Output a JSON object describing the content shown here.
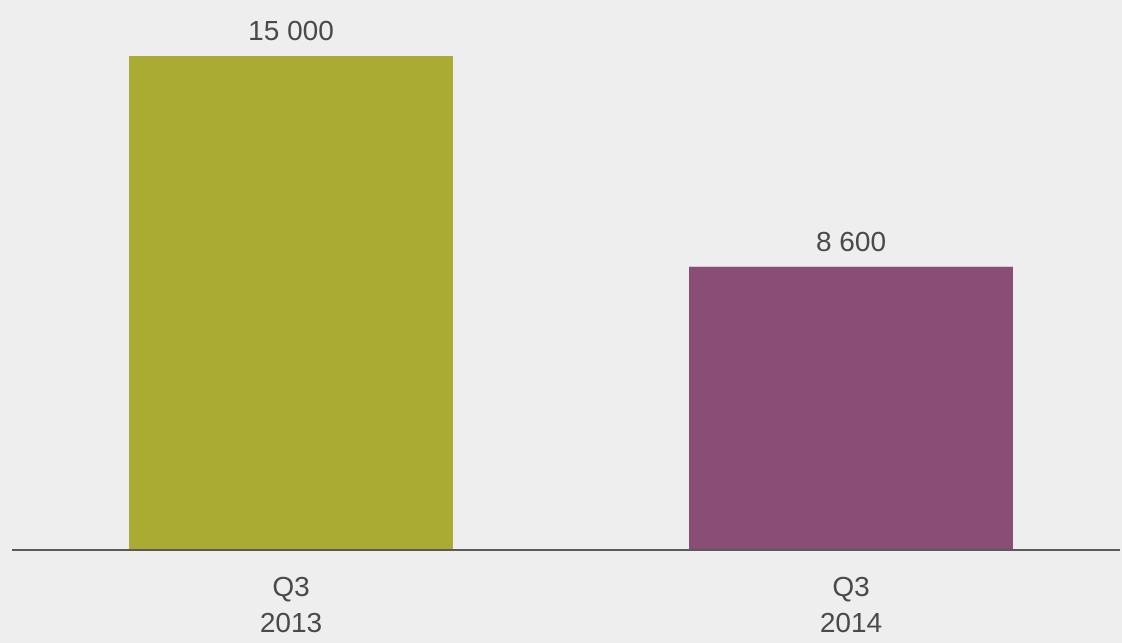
{
  "chart_data": {
    "type": "bar",
    "categories": [
      [
        "Q3",
        "2013"
      ],
      [
        "Q3",
        "2014"
      ]
    ],
    "values": [
      15000,
      8600
    ],
    "value_labels": [
      "15 000",
      "8 600"
    ],
    "bar_colors": [
      "#aaab33",
      "#8a4e76"
    ],
    "ylim": [
      0,
      15000
    ],
    "grid": false,
    "title": "",
    "xlabel": "",
    "ylabel": ""
  },
  "colors": {
    "background": "#eeeeee",
    "axis": "#5a5a5a",
    "text": "#4a4a4a"
  }
}
